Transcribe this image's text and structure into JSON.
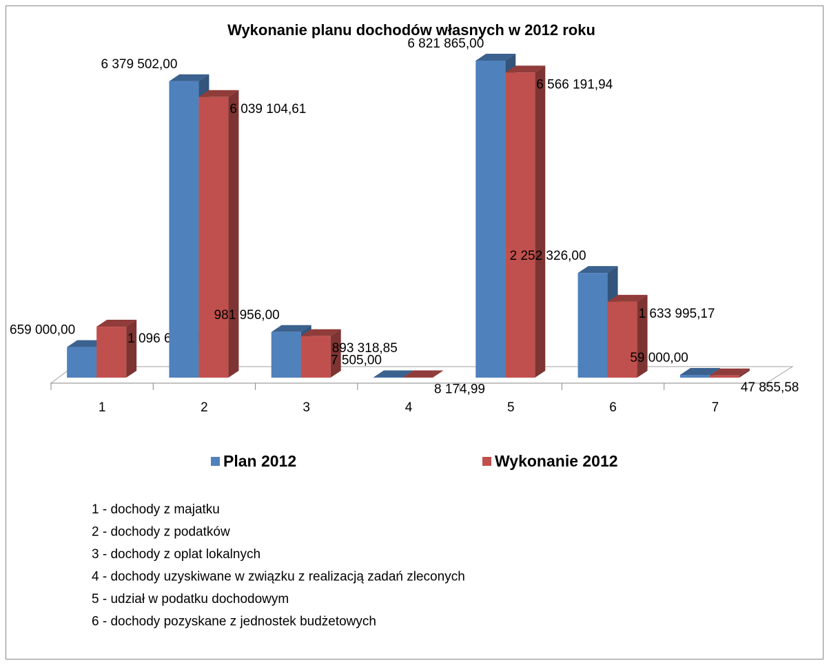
{
  "chart_data": {
    "type": "bar",
    "title": "Wykonanie planu dochodów własnych w 2012 roku",
    "categories": [
      "1",
      "2",
      "3",
      "4",
      "5",
      "6",
      "7"
    ],
    "series": [
      {
        "name": "Plan 2012",
        "color": "#4f81bd",
        "values": [
          659000,
          6379502,
          981956,
          7505,
          6821865,
          2252326,
          59000
        ],
        "value_labels": [
          "659 000,00",
          "6 379 502,00",
          "981 956,00",
          "7 505,00",
          "6 821 865,00",
          "2 252 326,00",
          "59 000,00"
        ]
      },
      {
        "name": "Wykonanie 2012",
        "color": "#c0504d",
        "values": [
          1096644.99,
          6039104.61,
          893318.85,
          8174.99,
          6566191.94,
          1633995.17,
          47855.58
        ],
        "value_labels": [
          "1 096 644,99",
          "6 039 104,61",
          "893 318,85",
          "8 174,99",
          "6 566 191,94",
          "1 633 995,17",
          "47 855,58"
        ]
      }
    ],
    "ylim": [
      0,
      7000000
    ],
    "notes": [
      "1 - dochody z majatku",
      "2 - dochody z podatków",
      "3 - dochody z oplat lokalnych",
      "4 - dochody uzyskiwane w związku z realizacją zadań zleconych",
      "5 - udział w podatku dochodowym",
      "6 - dochody pozyskane z jednostek budżetowych"
    ]
  }
}
